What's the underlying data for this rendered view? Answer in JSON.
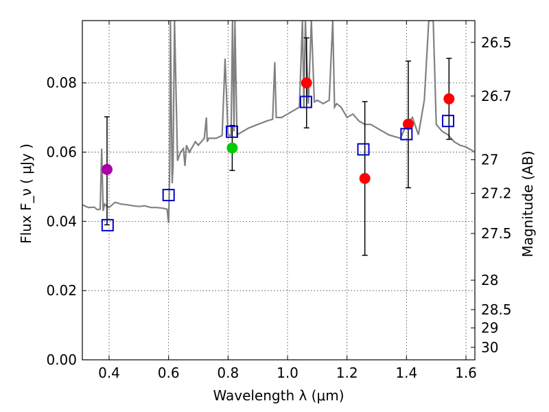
{
  "chart_data": {
    "type": "scatter",
    "title": "",
    "xlabel": "Wavelength  λ (μm)",
    "ylabel": "Flux  F_ν  ( μJy )",
    "y2label": "Magnitude (AB)",
    "xlim": [
      0.31,
      1.63
    ],
    "ylim": [
      0.0,
      0.098
    ],
    "x_ticks": [
      0.4,
      0.6,
      0.8,
      1.0,
      1.2,
      1.4,
      1.6
    ],
    "x_tick_labels": [
      "0.4",
      "0.6",
      "0.8",
      "1.0",
      "1.2",
      "1.4",
      "1.6"
    ],
    "y_ticks": [
      0.0,
      0.02,
      0.04,
      0.06,
      0.08
    ],
    "y_tick_labels": [
      "0.00",
      "0.02",
      "0.04",
      "0.06",
      "0.08"
    ],
    "mag_ticks": [
      {
        "label": "26.5",
        "flux": 0.0917
      },
      {
        "label": "26.7",
        "flux": 0.0762
      },
      {
        "label": "27",
        "flux": 0.0578
      },
      {
        "label": "27.2",
        "flux": 0.0481
      },
      {
        "label": "27.5",
        "flux": 0.0365
      },
      {
        "label": "28",
        "flux": 0.023
      },
      {
        "label": "28.5",
        "flux": 0.0145
      },
      {
        "label": "29",
        "flux": 0.0092
      },
      {
        "label": "30",
        "flux": 0.0036
      }
    ],
    "grid": true,
    "observed": [
      {
        "x": 0.393,
        "y": 0.055,
        "yerr_low": 0.039,
        "yerr_high": 0.0702,
        "color": "#aa00aa"
      },
      {
        "x": 0.814,
        "y": 0.0612,
        "yerr_low": 0.0547,
        "yerr_high": 0.0677,
        "color": "#00cc00"
      },
      {
        "x": 1.064,
        "y": 0.08,
        "yerr_low": 0.067,
        "yerr_high": 0.093,
        "color": "#ff0000"
      },
      {
        "x": 1.26,
        "y": 0.0524,
        "yerr_low": 0.0302,
        "yerr_high": 0.0746,
        "color": "#ff0000"
      },
      {
        "x": 1.406,
        "y": 0.0681,
        "yerr_low": 0.0497,
        "yerr_high": 0.0863,
        "color": "#ff0000"
      },
      {
        "x": 1.543,
        "y": 0.0754,
        "yerr_low": 0.0637,
        "yerr_high": 0.0871,
        "color": "#ff0000"
      }
    ],
    "model_photometry": {
      "color": "#0000cc",
      "points": [
        {
          "x": 0.395,
          "y": 0.0389
        },
        {
          "x": 0.6,
          "y": 0.0476
        },
        {
          "x": 0.813,
          "y": 0.0659
        },
        {
          "x": 1.062,
          "y": 0.0745
        },
        {
          "x": 1.255,
          "y": 0.0608
        },
        {
          "x": 1.4,
          "y": 0.0652
        },
        {
          "x": 1.54,
          "y": 0.069
        }
      ]
    },
    "model_spectrum": {
      "color": "#808080",
      "x": [
        0.31,
        0.33,
        0.35,
        0.36,
        0.37,
        0.375,
        0.38,
        0.385,
        0.39,
        0.4,
        0.42,
        0.44,
        0.46,
        0.48,
        0.5,
        0.52,
        0.54,
        0.56,
        0.58,
        0.595,
        0.6,
        0.604,
        0.606,
        0.612,
        0.615,
        0.62,
        0.63,
        0.64,
        0.65,
        0.655,
        0.66,
        0.67,
        0.69,
        0.7,
        0.72,
        0.727,
        0.73,
        0.735,
        0.76,
        0.78,
        0.79,
        0.8,
        0.81,
        0.815,
        0.82,
        0.823,
        0.83,
        0.85,
        0.87,
        0.9,
        0.93,
        0.95,
        0.957,
        0.962,
        0.98,
        1.0,
        1.02,
        1.04,
        1.05,
        1.055,
        1.06,
        1.07,
        1.08,
        1.09,
        1.1,
        1.12,
        1.14,
        1.152,
        1.158,
        1.165,
        1.18,
        1.2,
        1.22,
        1.24,
        1.26,
        1.28,
        1.3,
        1.32,
        1.34,
        1.36,
        1.38,
        1.4,
        1.42,
        1.44,
        1.46,
        1.475,
        1.49,
        1.5,
        1.52,
        1.54,
        1.56,
        1.58,
        1.6,
        1.62,
        1.63
      ],
      "y": [
        0.0448,
        0.044,
        0.0441,
        0.0434,
        0.0435,
        0.061,
        0.043,
        0.045,
        0.0445,
        0.044,
        0.0455,
        0.045,
        0.0448,
        0.0445,
        0.0443,
        0.0445,
        0.044,
        0.044,
        0.0438,
        0.0435,
        0.0395,
        0.056,
        0.098,
        0.051,
        0.056,
        0.098,
        0.0575,
        0.06,
        0.061,
        0.056,
        0.062,
        0.06,
        0.063,
        0.062,
        0.064,
        0.07,
        0.063,
        0.064,
        0.064,
        0.0648,
        0.087,
        0.065,
        0.0648,
        0.098,
        0.066,
        0.098,
        0.065,
        0.066,
        0.067,
        0.068,
        0.069,
        0.0695,
        0.086,
        0.07,
        0.07,
        0.071,
        0.072,
        0.073,
        0.098,
        0.073,
        0.098,
        0.074,
        0.098,
        0.0745,
        0.075,
        0.074,
        0.075,
        0.098,
        0.073,
        0.074,
        0.073,
        0.07,
        0.071,
        0.069,
        0.068,
        0.068,
        0.067,
        0.066,
        0.065,
        0.0645,
        0.064,
        0.068,
        0.07,
        0.065,
        0.075,
        0.098,
        0.098,
        0.068,
        0.066,
        0.065,
        0.063,
        0.062,
        0.0615,
        0.0605,
        0.06
      ]
    }
  }
}
